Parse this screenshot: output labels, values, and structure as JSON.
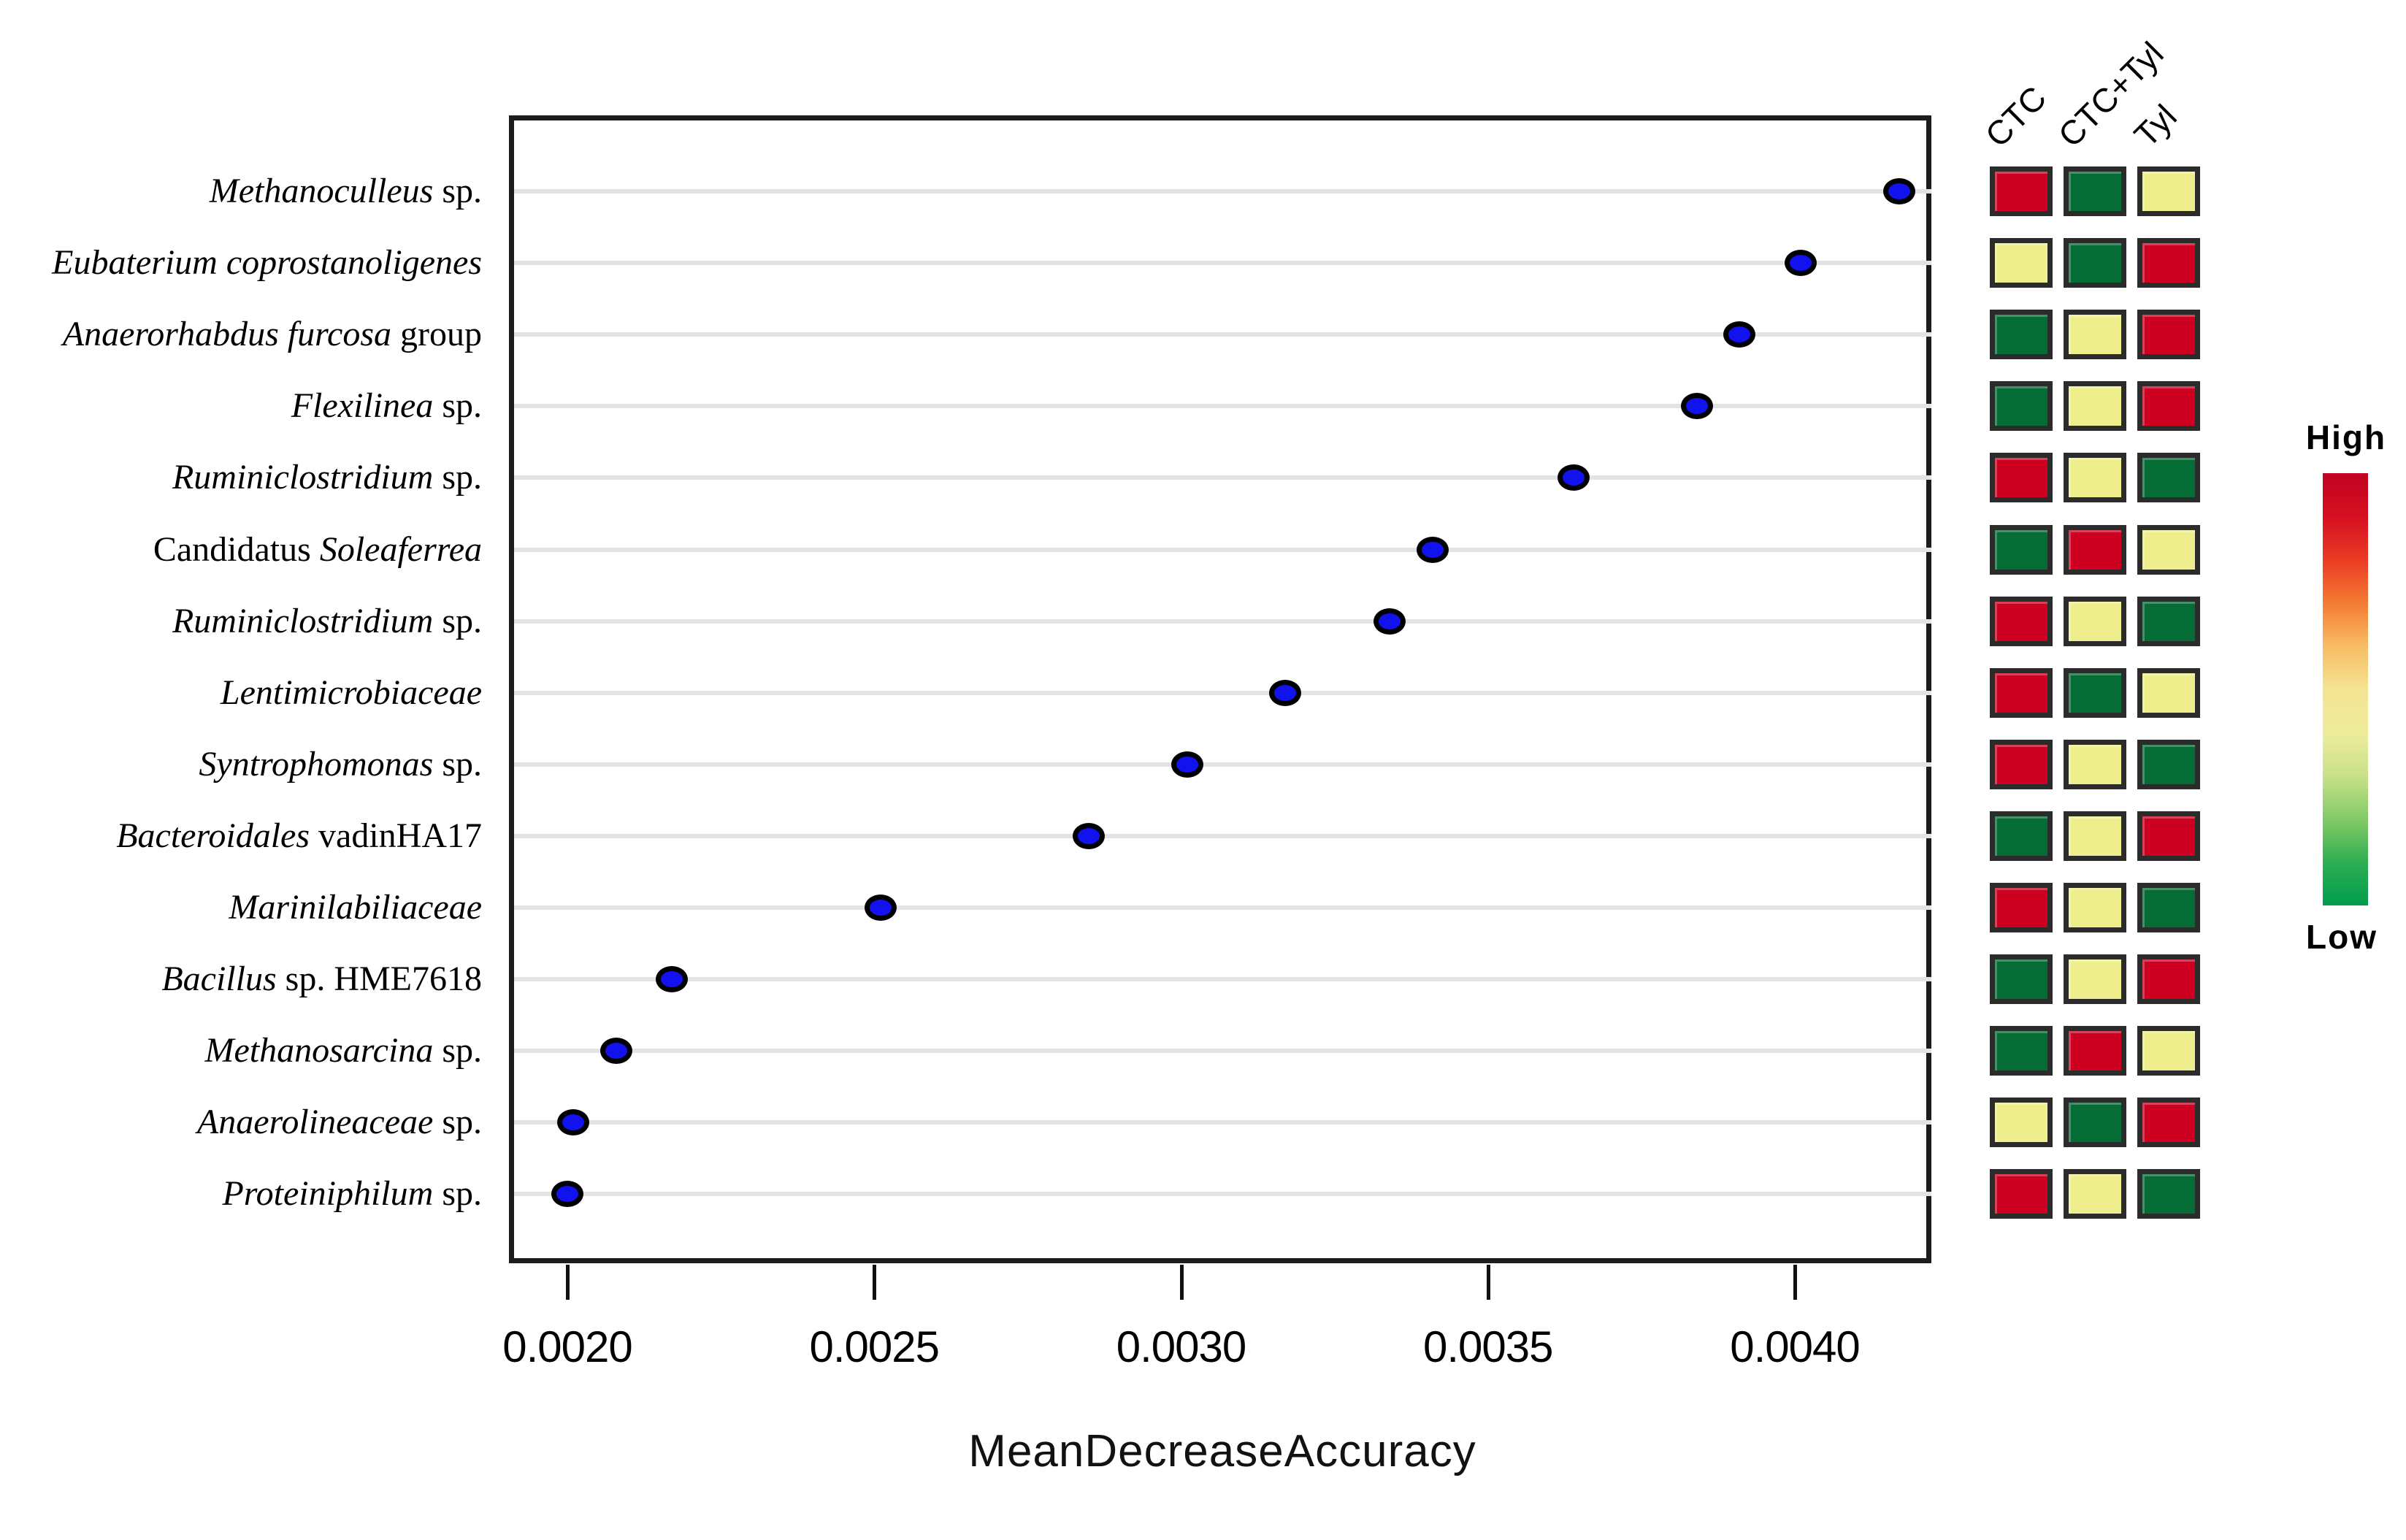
{
  "chart_data": {
    "type": "scatter",
    "title": "",
    "xlabel": "MeanDecreaseAccuracy",
    "x_tick_labels": [
      "0.0020",
      "0.0025",
      "0.0030",
      "0.0035",
      "0.0040"
    ],
    "x_ticks": [
      0.002,
      0.0025,
      0.003,
      0.0035,
      0.004
    ],
    "xlim": [
      0.001908,
      0.004226
    ],
    "grid": "horizontal",
    "heatmap_columns": [
      "CTC",
      "CTC+Tyl",
      "Tyl"
    ],
    "legend": {
      "high": "High",
      "low": "Low",
      "position": "right"
    },
    "rows": [
      {
        "segments": [
          {
            "text": "Methanoculleus ",
            "italic": true
          },
          {
            "text": " sp.",
            "italic": false
          }
        ],
        "value": 0.00417,
        "heat": [
          "red",
          "green",
          "yellow"
        ]
      },
      {
        "segments": [
          {
            "text": "Eubaterium coprostanoligenes",
            "italic": true
          }
        ],
        "value": 0.00401,
        "heat": [
          "yellow",
          "green",
          "red"
        ]
      },
      {
        "segments": [
          {
            "text": "Anaerorhabdus furcosa ",
            "italic": true
          },
          {
            "text": "group",
            "italic": false
          }
        ],
        "value": 0.00391,
        "heat": [
          "green",
          "yellow",
          "red"
        ]
      },
      {
        "segments": [
          {
            "text": "Flexilinea ",
            "italic": true
          },
          {
            "text": "sp.",
            "italic": false
          }
        ],
        "value": 0.00384,
        "heat": [
          "green",
          "yellow",
          "red"
        ]
      },
      {
        "segments": [
          {
            "text": "Ruminiclostridium ",
            "italic": true
          },
          {
            "text": "sp.",
            "italic": false
          }
        ],
        "value": 0.00364,
        "heat": [
          "red",
          "yellow",
          "green"
        ]
      },
      {
        "segments": [
          {
            "text": "Candidatus ",
            "italic": false
          },
          {
            "text": "Soleaferrea",
            "italic": true
          }
        ],
        "value": 0.00341,
        "heat": [
          "green",
          "red",
          "yellow"
        ]
      },
      {
        "segments": [
          {
            "text": "Ruminiclostridium ",
            "italic": true
          },
          {
            "text": "sp.",
            "italic": false
          }
        ],
        "value": 0.00334,
        "heat": [
          "red",
          "yellow",
          "green"
        ]
      },
      {
        "segments": [
          {
            "text": "Lentimicrobiaceae",
            "italic": true
          }
        ],
        "value": 0.00317,
        "heat": [
          "red",
          "green",
          "yellow"
        ]
      },
      {
        "segments": [
          {
            "text": "Syntrophomonas ",
            "italic": true
          },
          {
            "text": "sp.",
            "italic": false
          }
        ],
        "value": 0.00301,
        "heat": [
          "red",
          "yellow",
          "green"
        ]
      },
      {
        "segments": [
          {
            "text": "Bacteroidales ",
            "italic": true
          },
          {
            "text": "vadinHA17",
            "italic": false
          }
        ],
        "value": 0.00285,
        "heat": [
          "green",
          "yellow",
          "red"
        ]
      },
      {
        "segments": [
          {
            "text": "Marinilabiliaceae",
            "italic": true
          }
        ],
        "value": 0.00251,
        "heat": [
          "red",
          "yellow",
          "green"
        ]
      },
      {
        "segments": [
          {
            "text": "Bacillus ",
            "italic": true
          },
          {
            "text": "sp. HME7618",
            "italic": false
          }
        ],
        "value": 0.00217,
        "heat": [
          "green",
          "yellow",
          "red"
        ]
      },
      {
        "segments": [
          {
            "text": "Methanosarcina ",
            "italic": true
          },
          {
            "text": " sp.",
            "italic": false
          }
        ],
        "value": 0.00208,
        "heat": [
          "green",
          "red",
          "yellow"
        ]
      },
      {
        "segments": [
          {
            "text": "Anaerolineaceae ",
            "italic": true
          },
          {
            "text": " sp.",
            "italic": false
          }
        ],
        "value": 0.00201,
        "heat": [
          "yellow",
          "green",
          "red"
        ]
      },
      {
        "segments": [
          {
            "text": "Proteiniphilum ",
            "italic": true
          },
          {
            "text": "sp.",
            "italic": false
          }
        ],
        "value": 0.002,
        "heat": [
          "red",
          "yellow",
          "green"
        ]
      }
    ],
    "colors": {
      "dot_fill": "#1212ee",
      "dot_stroke": "#000000",
      "grid_line": "#e3e3e3",
      "box_border": "#1c1c1c",
      "cell_border": "#2b2b2b",
      "heat_red": "#ce0021",
      "heat_green": "#066c36",
      "heat_yellow": "#efee8d",
      "gradient_stops": [
        "#bf0321",
        "#d50f20",
        "#ea3b24",
        "#f37b33",
        "#f7bc63",
        "#f3e392",
        "#eeec9a",
        "#c8e18a",
        "#83cb66",
        "#2eae52",
        "#019c4c"
      ]
    }
  }
}
